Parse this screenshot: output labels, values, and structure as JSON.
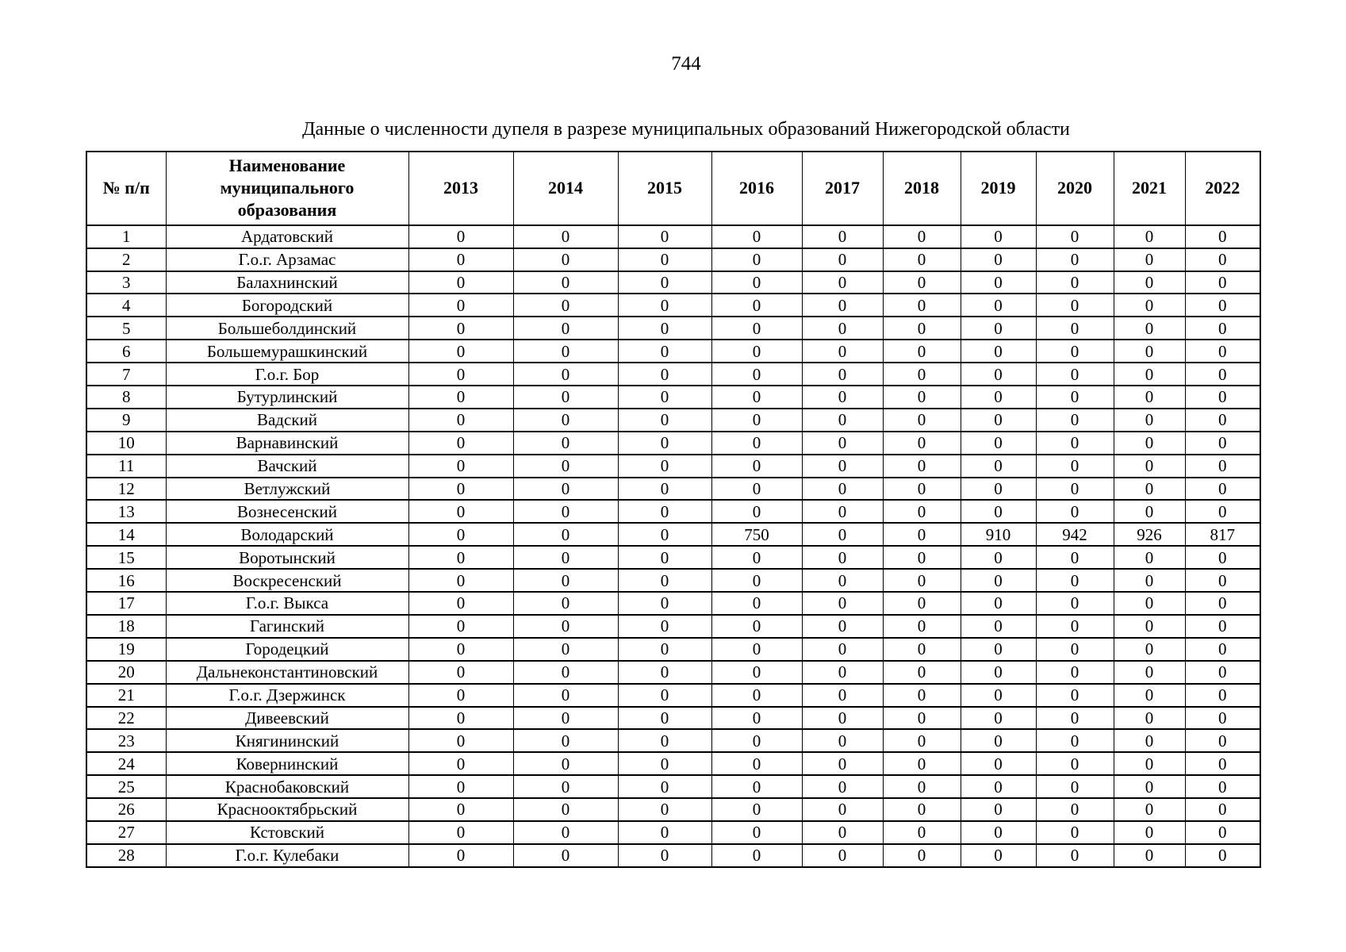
{
  "page": {
    "number": "744",
    "title": "Данные о численности дупеля в разрезе муниципальных образований Нижегородской области"
  },
  "table": {
    "headers": {
      "index": "№ п/п",
      "name": "Наименование муниципального образования",
      "years": [
        "2013",
        "2014",
        "2015",
        "2016",
        "2017",
        "2018",
        "2019",
        "2020",
        "2021",
        "2022"
      ]
    },
    "rows": [
      {
        "n": "1",
        "name": "Ардатовский",
        "values": [
          "0",
          "0",
          "0",
          "0",
          "0",
          "0",
          "0",
          "0",
          "0",
          "0"
        ]
      },
      {
        "n": "2",
        "name": "Г.о.г. Арзамас",
        "values": [
          "0",
          "0",
          "0",
          "0",
          "0",
          "0",
          "0",
          "0",
          "0",
          "0"
        ]
      },
      {
        "n": "3",
        "name": "Балахнинский",
        "values": [
          "0",
          "0",
          "0",
          "0",
          "0",
          "0",
          "0",
          "0",
          "0",
          "0"
        ]
      },
      {
        "n": "4",
        "name": "Богородский",
        "values": [
          "0",
          "0",
          "0",
          "0",
          "0",
          "0",
          "0",
          "0",
          "0",
          "0"
        ]
      },
      {
        "n": "5",
        "name": "Большеболдинский",
        "values": [
          "0",
          "0",
          "0",
          "0",
          "0",
          "0",
          "0",
          "0",
          "0",
          "0"
        ]
      },
      {
        "n": "6",
        "name": "Большемурашкинский",
        "values": [
          "0",
          "0",
          "0",
          "0",
          "0",
          "0",
          "0",
          "0",
          "0",
          "0"
        ]
      },
      {
        "n": "7",
        "name": "Г.о.г. Бор",
        "values": [
          "0",
          "0",
          "0",
          "0",
          "0",
          "0",
          "0",
          "0",
          "0",
          "0"
        ]
      },
      {
        "n": "8",
        "name": "Бутурлинский",
        "values": [
          "0",
          "0",
          "0",
          "0",
          "0",
          "0",
          "0",
          "0",
          "0",
          "0"
        ]
      },
      {
        "n": "9",
        "name": "Вадский",
        "values": [
          "0",
          "0",
          "0",
          "0",
          "0",
          "0",
          "0",
          "0",
          "0",
          "0"
        ]
      },
      {
        "n": "10",
        "name": "Варнавинский",
        "values": [
          "0",
          "0",
          "0",
          "0",
          "0",
          "0",
          "0",
          "0",
          "0",
          "0"
        ]
      },
      {
        "n": "11",
        "name": "Вачский",
        "values": [
          "0",
          "0",
          "0",
          "0",
          "0",
          "0",
          "0",
          "0",
          "0",
          "0"
        ]
      },
      {
        "n": "12",
        "name": "Ветлужский",
        "values": [
          "0",
          "0",
          "0",
          "0",
          "0",
          "0",
          "0",
          "0",
          "0",
          "0"
        ]
      },
      {
        "n": "13",
        "name": "Вознесенский",
        "values": [
          "0",
          "0",
          "0",
          "0",
          "0",
          "0",
          "0",
          "0",
          "0",
          "0"
        ]
      },
      {
        "n": "14",
        "name": "Володарский",
        "values": [
          "0",
          "0",
          "0",
          "750",
          "0",
          "0",
          "910",
          "942",
          "926",
          "817"
        ]
      },
      {
        "n": "15",
        "name": "Воротынский",
        "values": [
          "0",
          "0",
          "0",
          "0",
          "0",
          "0",
          "0",
          "0",
          "0",
          "0"
        ]
      },
      {
        "n": "16",
        "name": "Воскресенский",
        "values": [
          "0",
          "0",
          "0",
          "0",
          "0",
          "0",
          "0",
          "0",
          "0",
          "0"
        ]
      },
      {
        "n": "17",
        "name": "Г.о.г. Выкса",
        "values": [
          "0",
          "0",
          "0",
          "0",
          "0",
          "0",
          "0",
          "0",
          "0",
          "0"
        ]
      },
      {
        "n": "18",
        "name": "Гагинский",
        "values": [
          "0",
          "0",
          "0",
          "0",
          "0",
          "0",
          "0",
          "0",
          "0",
          "0"
        ]
      },
      {
        "n": "19",
        "name": "Городецкий",
        "values": [
          "0",
          "0",
          "0",
          "0",
          "0",
          "0",
          "0",
          "0",
          "0",
          "0"
        ]
      },
      {
        "n": "20",
        "name": "Дальнеконстантиновский",
        "values": [
          "0",
          "0",
          "0",
          "0",
          "0",
          "0",
          "0",
          "0",
          "0",
          "0"
        ]
      },
      {
        "n": "21",
        "name": "Г.о.г. Дзержинск",
        "values": [
          "0",
          "0",
          "0",
          "0",
          "0",
          "0",
          "0",
          "0",
          "0",
          "0"
        ]
      },
      {
        "n": "22",
        "name": "Дивеевский",
        "values": [
          "0",
          "0",
          "0",
          "0",
          "0",
          "0",
          "0",
          "0",
          "0",
          "0"
        ]
      },
      {
        "n": "23",
        "name": "Княгининский",
        "values": [
          "0",
          "0",
          "0",
          "0",
          "0",
          "0",
          "0",
          "0",
          "0",
          "0"
        ]
      },
      {
        "n": "24",
        "name": "Ковернинский",
        "values": [
          "0",
          "0",
          "0",
          "0",
          "0",
          "0",
          "0",
          "0",
          "0",
          "0"
        ]
      },
      {
        "n": "25",
        "name": "Краснобаковский",
        "values": [
          "0",
          "0",
          "0",
          "0",
          "0",
          "0",
          "0",
          "0",
          "0",
          "0"
        ]
      },
      {
        "n": "26",
        "name": "Краснооктябрьский",
        "values": [
          "0",
          "0",
          "0",
          "0",
          "0",
          "0",
          "0",
          "0",
          "0",
          "0"
        ]
      },
      {
        "n": "27",
        "name": "Кстовский",
        "values": [
          "0",
          "0",
          "0",
          "0",
          "0",
          "0",
          "0",
          "0",
          "0",
          "0"
        ]
      },
      {
        "n": "28",
        "name": "Г.о.г. Кулебаки",
        "values": [
          "0",
          "0",
          "0",
          "0",
          "0",
          "0",
          "0",
          "0",
          "0",
          "0"
        ]
      }
    ]
  }
}
